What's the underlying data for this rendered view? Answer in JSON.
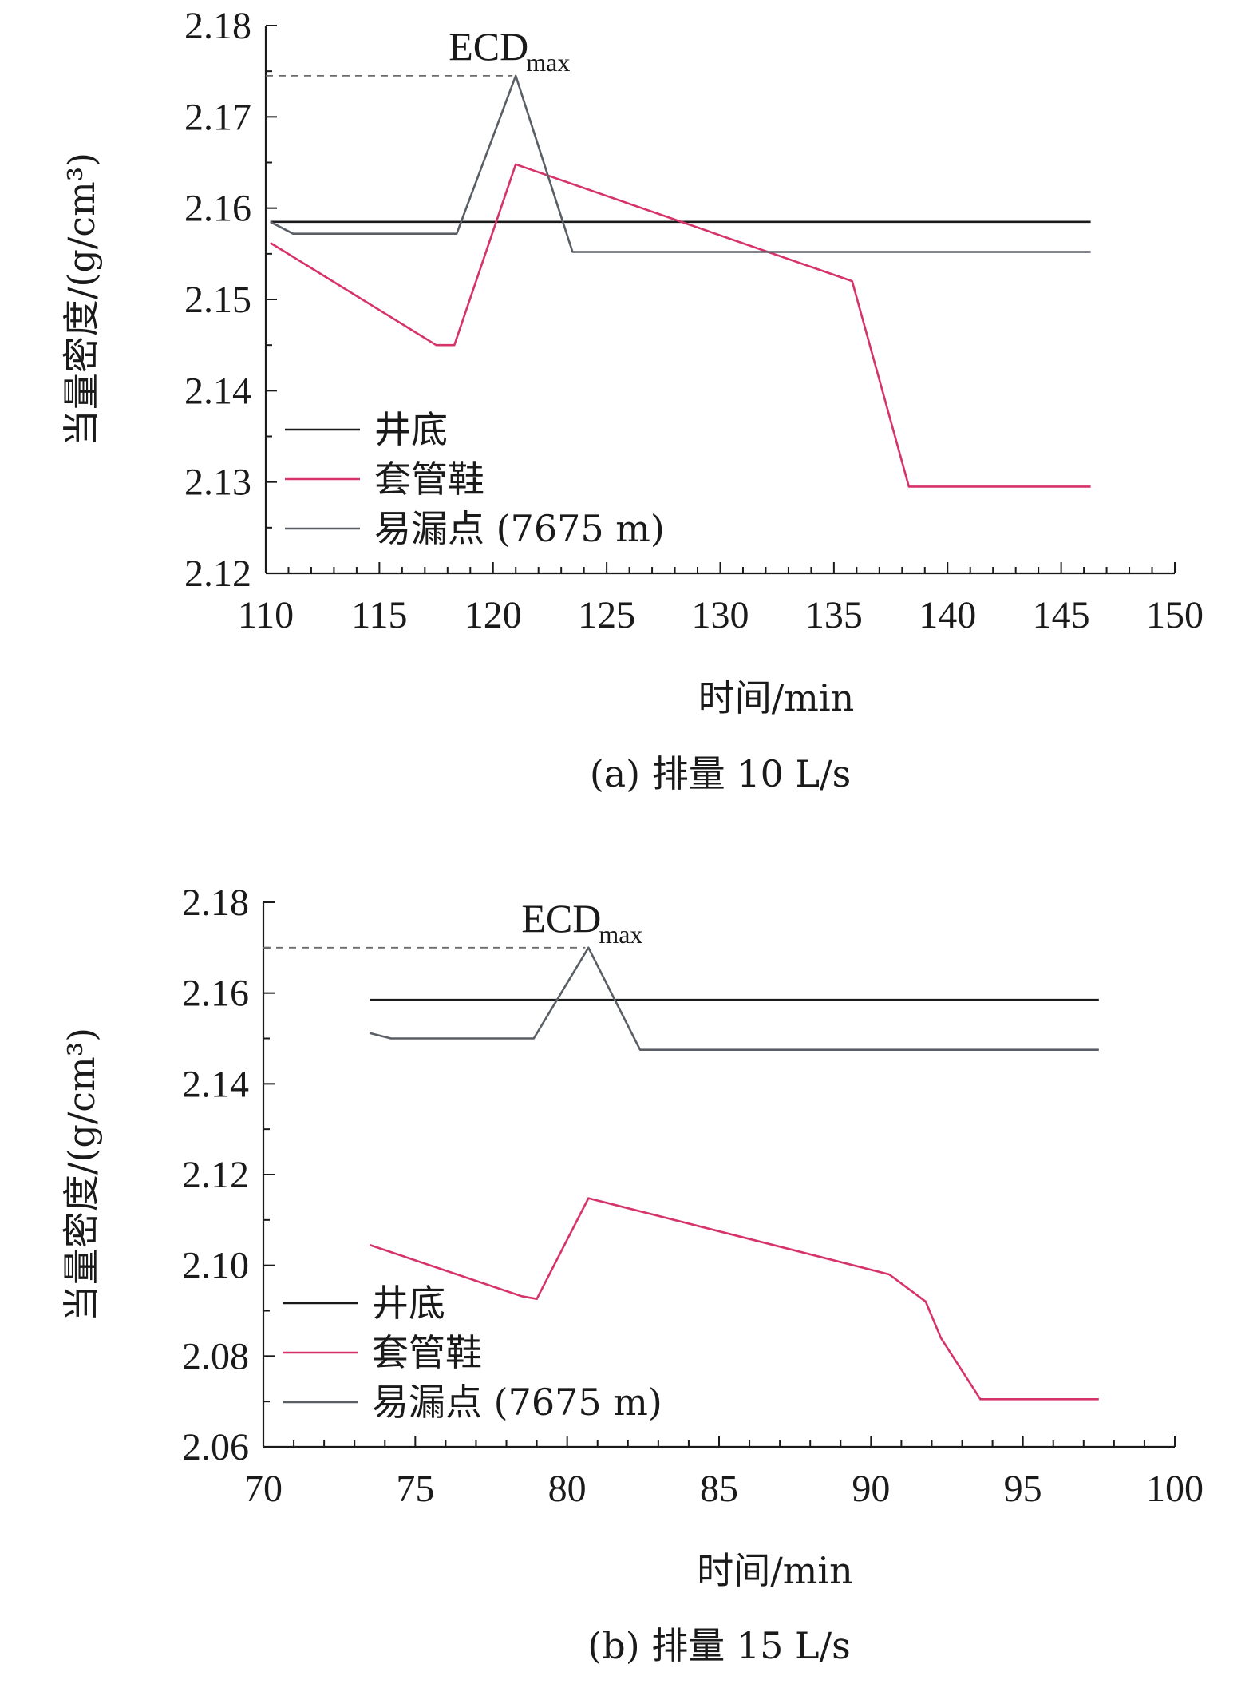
{
  "chart_data": [
    {
      "type": "line",
      "caption": "(a) 排量 10 L/s",
      "xlabel": "时间/min",
      "ylabel": "当量密度/(g/cm³)",
      "xlim": [
        110,
        150
      ],
      "ylim": [
        2.12,
        2.18
      ],
      "xticks": [
        110,
        115,
        120,
        125,
        130,
        135,
        140,
        145,
        150
      ],
      "xtick_labels": [
        "110",
        "115",
        "120",
        "125",
        "130",
        "135",
        "140",
        "145",
        "150"
      ],
      "yticks": [
        2.12,
        2.13,
        2.14,
        2.15,
        2.16,
        2.17,
        2.18
      ],
      "ytick_labels": [
        "2.12",
        "2.13",
        "2.14",
        "2.15",
        "2.16",
        "2.17",
        "2.18"
      ],
      "grid": false,
      "legend_position": "bottom-left",
      "annotation": {
        "text": "ECD",
        "sub": "max",
        "x": 121,
        "y": 2.1745
      },
      "series": [
        {
          "name": "井底",
          "color": "#1a1a1a",
          "x": [
            110.2,
            146.3
          ],
          "y": [
            2.1585,
            2.1585
          ]
        },
        {
          "name": "套管鞋",
          "color": "#d6336c",
          "x": [
            110.2,
            117.5,
            118.3,
            121.0,
            135.8,
            138.3,
            146.3
          ],
          "y": [
            2.1562,
            2.145,
            2.145,
            2.1648,
            2.152,
            2.1295,
            2.1295
          ]
        },
        {
          "name": "易漏点 (7675 m)",
          "color": "#5a5f66",
          "x": [
            110.2,
            111.2,
            118.4,
            121.0,
            123.5,
            146.3
          ],
          "y": [
            2.1585,
            2.1572,
            2.1572,
            2.1745,
            2.1552,
            2.1552
          ]
        }
      ]
    },
    {
      "type": "line",
      "caption": "(b) 排量 15 L/s",
      "xlabel": "时间/min",
      "ylabel": "当量密度/(g/cm³)",
      "xlim": [
        70,
        100
      ],
      "ylim": [
        2.06,
        2.18
      ],
      "xticks": [
        70,
        75,
        80,
        85,
        90,
        95,
        100
      ],
      "xtick_labels": [
        "70",
        "75",
        "80",
        "85",
        "90",
        "95",
        "100"
      ],
      "yticks": [
        2.06,
        2.08,
        2.1,
        2.12,
        2.14,
        2.16,
        2.18
      ],
      "ytick_labels": [
        "2.06",
        "2.08",
        "2.10",
        "2.12",
        "2.14",
        "2.16",
        "2.18"
      ],
      "grid": false,
      "legend_position": "bottom-left",
      "annotation": {
        "text": "ECD",
        "sub": "max",
        "x": 80.7,
        "y": 2.17
      },
      "series": [
        {
          "name": "井底",
          "color": "#1a1a1a",
          "x": [
            73.5,
            97.5
          ],
          "y": [
            2.1585,
            2.1585
          ]
        },
        {
          "name": "套管鞋",
          "color": "#d6336c",
          "x": [
            73.5,
            78.5,
            79.0,
            80.7,
            90.6,
            91.8,
            92.3,
            93.6,
            97.5
          ],
          "y": [
            2.1045,
            2.0932,
            2.0926,
            2.1148,
            2.098,
            2.092,
            2.084,
            2.0705,
            2.0705
          ]
        },
        {
          "name": "易漏点 (7675 m)",
          "color": "#5a5f66",
          "x": [
            73.5,
            74.2,
            78.9,
            80.7,
            82.4,
            97.5
          ],
          "y": [
            2.1512,
            2.15,
            2.15,
            2.17,
            2.1475,
            2.1475
          ]
        }
      ]
    }
  ]
}
